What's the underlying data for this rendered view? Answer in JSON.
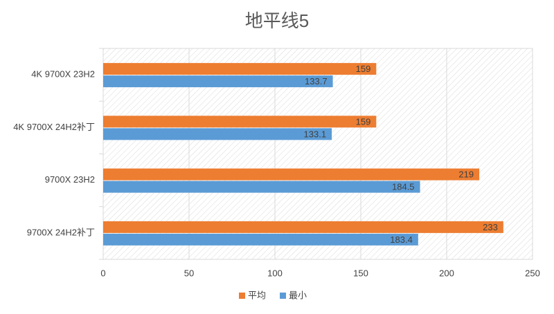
{
  "chart_data": {
    "type": "hbar",
    "title": "地平线5",
    "categories": [
      "4K 9700X 23H2",
      "4K 9700X 24H2补丁",
      "9700X 23H2",
      "9700X 24H2补丁"
    ],
    "series": [
      {
        "name": "平均",
        "color": "#ed7d31",
        "values": [
          159,
          159,
          219,
          233
        ]
      },
      {
        "name": "最小",
        "color": "#5b9bd5",
        "values": [
          133.7,
          133.1,
          184.5,
          183.4
        ]
      }
    ],
    "xlim": [
      0,
      250
    ],
    "xticks": [
      0,
      50,
      100,
      150,
      200,
      250
    ],
    "grid": true,
    "legend": "bottom"
  }
}
